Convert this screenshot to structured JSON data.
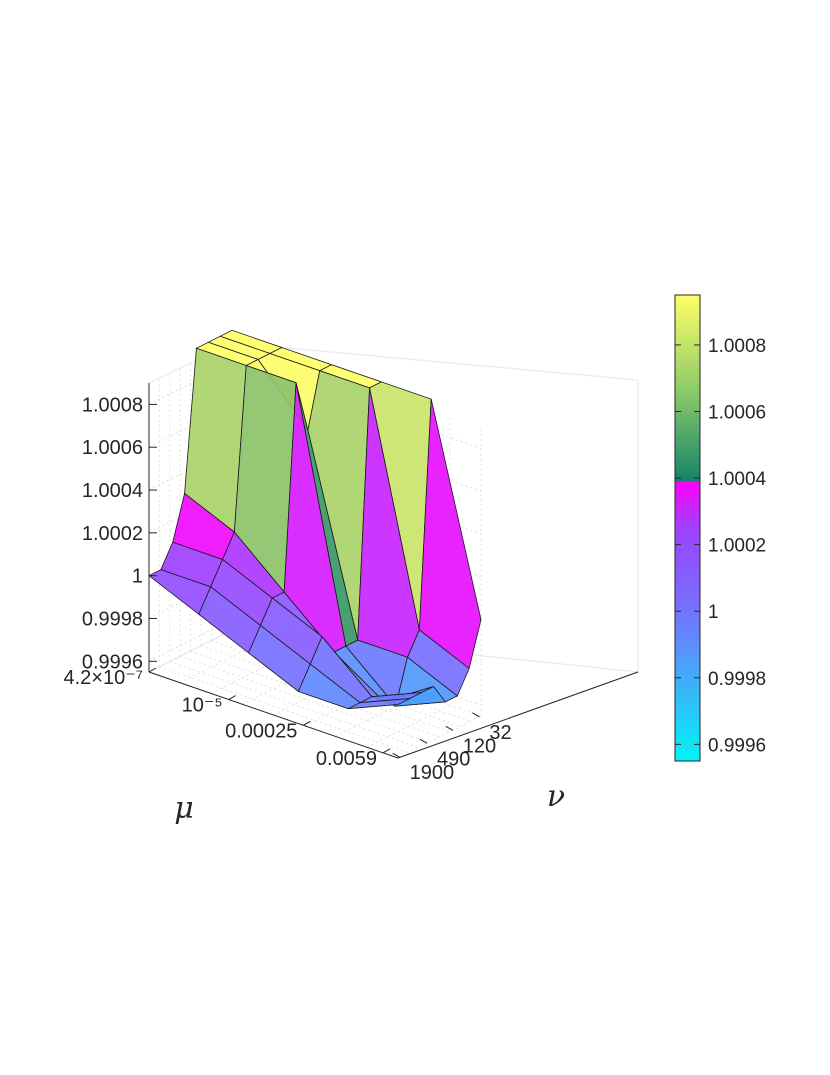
{
  "chart_data": {
    "type": "surface",
    "xlabel": "μ",
    "ylabel": "ν",
    "zlabel": "",
    "x_scale": "log",
    "y_scale": "log",
    "x_ticks": [
      "4.2×10⁻⁷",
      "10⁻⁵",
      "0.00025",
      "0.0059"
    ],
    "y_ticks": [
      "1900",
      "490",
      "120",
      "32"
    ],
    "z_ticks": [
      "0.9996",
      "0.9998",
      "1",
      "1.0002",
      "1.0004",
      "1.0006",
      "1.0008"
    ],
    "zlim": [
      0.99955,
      1.0009
    ],
    "grid": true,
    "colormap": "piecewise: cyan → violet → magenta (≤1.0002), green → yellow (>1.0002)",
    "surface_z": [
      [
        1.0,
        1.0,
        1.0001,
        1.0003,
        1.00095,
        1.00095,
        1.00095,
        1.00095
      ],
      [
        0.9999,
        1.0,
        1.0001,
        1.0002,
        1.00095,
        1.00095,
        1.00095,
        1.00095
      ],
      [
        0.9998,
        0.9999,
        1.0,
        1.0,
        1.00095,
        1.0007,
        1.00095,
        1.00095
      ],
      [
        0.9997,
        0.9998,
        0.9999,
        0.9998,
        0.9998,
        0.9998,
        1.00095,
        1.00095
      ],
      [
        0.9997,
        0.9997,
        0.9997,
        0.99965,
        0.9996,
        0.9998,
        0.9999,
        1.00095
      ],
      [
        0.9998,
        0.9998,
        0.9998,
        0.9998,
        0.9997,
        0.9997,
        0.9998,
        1.0
      ]
    ]
  },
  "colorbar": {
    "ticks": [
      "1.0008",
      "1.0006",
      "1.0004",
      "1.0002",
      "1",
      "0.9998",
      "0.9996"
    ],
    "colors": {
      "low": "#00f4f4",
      "mid_low": "#6f79ff",
      "mid": "#a040ff",
      "mid_high": "#ff00ff",
      "green": "#138466",
      "yellow_green": "#cfe66a",
      "yellow": "#ffff66"
    }
  }
}
